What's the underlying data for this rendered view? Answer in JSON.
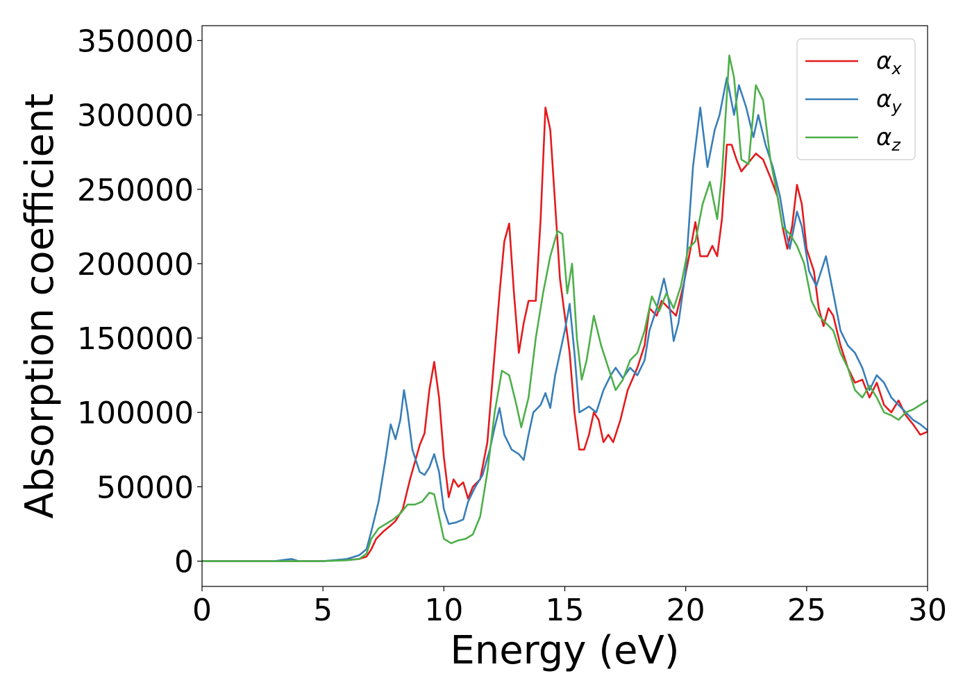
{
  "chart_data": {
    "type": "line",
    "xlabel": "Energy (eV)",
    "ylabel": "Absorption coefficient",
    "xlim": [
      0,
      30
    ],
    "ylim": [
      -17000,
      360000
    ],
    "xticks": [
      0,
      5,
      10,
      15,
      20,
      25,
      30
    ],
    "yticks": [
      0,
      50000,
      100000,
      150000,
      200000,
      250000,
      300000,
      350000
    ],
    "grid": false,
    "legend": "top-right",
    "series": [
      {
        "name": "α",
        "subscript": "x",
        "color": "#e41a1c",
        "points": [
          [
            0,
            0
          ],
          [
            1,
            0
          ],
          [
            2,
            0
          ],
          [
            3,
            0
          ],
          [
            4,
            0
          ],
          [
            5,
            0
          ],
          [
            5.5,
            500
          ],
          [
            6,
            800
          ],
          [
            6.5,
            1500
          ],
          [
            6.8,
            3000
          ],
          [
            7,
            8000
          ],
          [
            7.2,
            15000
          ],
          [
            7.5,
            20000
          ],
          [
            7.8,
            24000
          ],
          [
            8,
            27000
          ],
          [
            8.3,
            35000
          ],
          [
            8.6,
            55000
          ],
          [
            9,
            78000
          ],
          [
            9.2,
            86000
          ],
          [
            9.4,
            115000
          ],
          [
            9.6,
            134000
          ],
          [
            9.8,
            110000
          ],
          [
            10,
            70000
          ],
          [
            10.2,
            43000
          ],
          [
            10.4,
            55000
          ],
          [
            10.6,
            50000
          ],
          [
            10.8,
            53000
          ],
          [
            11,
            42000
          ],
          [
            11.2,
            50000
          ],
          [
            11.5,
            55000
          ],
          [
            11.8,
            80000
          ],
          [
            12,
            120000
          ],
          [
            12.3,
            180000
          ],
          [
            12.5,
            215000
          ],
          [
            12.7,
            227000
          ],
          [
            12.9,
            180000
          ],
          [
            13.1,
            140000
          ],
          [
            13.3,
            160000
          ],
          [
            13.5,
            175000
          ],
          [
            13.8,
            175000
          ],
          [
            14,
            230000
          ],
          [
            14.2,
            305000
          ],
          [
            14.4,
            290000
          ],
          [
            14.6,
            240000
          ],
          [
            14.8,
            190000
          ],
          [
            15,
            165000
          ],
          [
            15.2,
            140000
          ],
          [
            15.4,
            100000
          ],
          [
            15.6,
            75000
          ],
          [
            15.8,
            75000
          ],
          [
            16,
            85000
          ],
          [
            16.2,
            100000
          ],
          [
            16.4,
            95000
          ],
          [
            16.6,
            80000
          ],
          [
            16.8,
            85000
          ],
          [
            17,
            80000
          ],
          [
            17.3,
            95000
          ],
          [
            17.6,
            115000
          ],
          [
            18,
            130000
          ],
          [
            18.3,
            145000
          ],
          [
            18.5,
            170000
          ],
          [
            18.8,
            165000
          ],
          [
            19,
            175000
          ],
          [
            19.3,
            170000
          ],
          [
            19.6,
            165000
          ],
          [
            19.9,
            185000
          ],
          [
            20.2,
            210000
          ],
          [
            20.4,
            228000
          ],
          [
            20.6,
            205000
          ],
          [
            20.9,
            205000
          ],
          [
            21.1,
            212000
          ],
          [
            21.3,
            205000
          ],
          [
            21.5,
            230000
          ],
          [
            21.7,
            280000
          ],
          [
            21.9,
            280000
          ],
          [
            22.1,
            270000
          ],
          [
            22.3,
            262000
          ],
          [
            22.6,
            268000
          ],
          [
            22.9,
            274000
          ],
          [
            23.2,
            270000
          ],
          [
            23.5,
            258000
          ],
          [
            23.8,
            245000
          ],
          [
            24,
            225000
          ],
          [
            24.2,
            210000
          ],
          [
            24.4,
            225000
          ],
          [
            24.6,
            253000
          ],
          [
            24.8,
            240000
          ],
          [
            25,
            210000
          ],
          [
            25.3,
            195000
          ],
          [
            25.5,
            170000
          ],
          [
            25.7,
            158000
          ],
          [
            25.9,
            170000
          ],
          [
            26.1,
            165000
          ],
          [
            26.4,
            145000
          ],
          [
            26.7,
            130000
          ],
          [
            27,
            120000
          ],
          [
            27.3,
            122000
          ],
          [
            27.6,
            110000
          ],
          [
            27.9,
            120000
          ],
          [
            28.2,
            105000
          ],
          [
            28.5,
            100000
          ],
          [
            28.8,
            108000
          ],
          [
            29.1,
            98000
          ],
          [
            29.4,
            92000
          ],
          [
            29.7,
            85000
          ],
          [
            30,
            87000
          ]
        ]
      },
      {
        "name": "α",
        "subscript": "y",
        "color": "#377eb8",
        "points": [
          [
            0,
            0
          ],
          [
            1,
            0
          ],
          [
            2,
            0
          ],
          [
            3,
            0
          ],
          [
            3.7,
            1500
          ],
          [
            4,
            0
          ],
          [
            5,
            0
          ],
          [
            5.5,
            700
          ],
          [
            6,
            1500
          ],
          [
            6.5,
            4000
          ],
          [
            6.8,
            8000
          ],
          [
            7,
            20000
          ],
          [
            7.3,
            40000
          ],
          [
            7.6,
            70000
          ],
          [
            7.8,
            92000
          ],
          [
            8,
            82000
          ],
          [
            8.2,
            95000
          ],
          [
            8.35,
            115000
          ],
          [
            8.5,
            100000
          ],
          [
            8.7,
            75000
          ],
          [
            9,
            60000
          ],
          [
            9.2,
            58000
          ],
          [
            9.4,
            63000
          ],
          [
            9.6,
            72000
          ],
          [
            9.8,
            60000
          ],
          [
            10,
            35000
          ],
          [
            10.2,
            25000
          ],
          [
            10.5,
            26000
          ],
          [
            10.8,
            28000
          ],
          [
            11,
            40000
          ],
          [
            11.3,
            50000
          ],
          [
            11.6,
            58000
          ],
          [
            11.9,
            75000
          ],
          [
            12.1,
            90000
          ],
          [
            12.3,
            103000
          ],
          [
            12.5,
            85000
          ],
          [
            12.8,
            75000
          ],
          [
            13.1,
            72000
          ],
          [
            13.3,
            68000
          ],
          [
            13.5,
            85000
          ],
          [
            13.7,
            100000
          ],
          [
            14,
            105000
          ],
          [
            14.2,
            113000
          ],
          [
            14.4,
            103000
          ],
          [
            14.6,
            125000
          ],
          [
            14.8,
            140000
          ],
          [
            15,
            155000
          ],
          [
            15.2,
            173000
          ],
          [
            15.4,
            140000
          ],
          [
            15.6,
            100000
          ],
          [
            15.8,
            102000
          ],
          [
            16,
            104000
          ],
          [
            16.3,
            100000
          ],
          [
            16.6,
            115000
          ],
          [
            16.9,
            125000
          ],
          [
            17.1,
            130000
          ],
          [
            17.4,
            123000
          ],
          [
            17.7,
            130000
          ],
          [
            18,
            125000
          ],
          [
            18.3,
            135000
          ],
          [
            18.5,
            155000
          ],
          [
            18.8,
            170000
          ],
          [
            19.1,
            190000
          ],
          [
            19.3,
            175000
          ],
          [
            19.5,
            148000
          ],
          [
            19.7,
            160000
          ],
          [
            20,
            195000
          ],
          [
            20.3,
            265000
          ],
          [
            20.6,
            305000
          ],
          [
            20.9,
            265000
          ],
          [
            21.2,
            290000
          ],
          [
            21.4,
            300000
          ],
          [
            21.7,
            325000
          ],
          [
            22,
            300000
          ],
          [
            22.2,
            320000
          ],
          [
            22.5,
            305000
          ],
          [
            22.8,
            285000
          ],
          [
            23,
            300000
          ],
          [
            23.3,
            280000
          ],
          [
            23.6,
            265000
          ],
          [
            23.9,
            245000
          ],
          [
            24.1,
            225000
          ],
          [
            24.3,
            210000
          ],
          [
            24.6,
            235000
          ],
          [
            24.8,
            225000
          ],
          [
            25.1,
            195000
          ],
          [
            25.4,
            185000
          ],
          [
            25.8,
            205000
          ],
          [
            26.1,
            180000
          ],
          [
            26.4,
            155000
          ],
          [
            26.7,
            145000
          ],
          [
            27,
            140000
          ],
          [
            27.3,
            130000
          ],
          [
            27.6,
            115000
          ],
          [
            27.9,
            125000
          ],
          [
            28.2,
            120000
          ],
          [
            28.5,
            110000
          ],
          [
            28.8,
            105000
          ],
          [
            29.1,
            100000
          ],
          [
            29.4,
            95000
          ],
          [
            29.7,
            92000
          ],
          [
            30,
            88000
          ]
        ]
      },
      {
        "name": "α",
        "subscript": "z",
        "color": "#4daf4a",
        "points": [
          [
            0,
            0
          ],
          [
            1,
            0
          ],
          [
            2,
            0
          ],
          [
            3,
            0
          ],
          [
            4,
            0
          ],
          [
            5,
            0
          ],
          [
            5.5,
            300
          ],
          [
            6,
            600
          ],
          [
            6.5,
            1500
          ],
          [
            6.8,
            5000
          ],
          [
            7,
            15000
          ],
          [
            7.3,
            22000
          ],
          [
            7.6,
            25000
          ],
          [
            7.9,
            28000
          ],
          [
            8.2,
            32000
          ],
          [
            8.5,
            38000
          ],
          [
            8.8,
            38000
          ],
          [
            9.1,
            40000
          ],
          [
            9.4,
            46000
          ],
          [
            9.6,
            45000
          ],
          [
            9.8,
            30000
          ],
          [
            10,
            15000
          ],
          [
            10.3,
            12000
          ],
          [
            10.6,
            14000
          ],
          [
            10.9,
            15000
          ],
          [
            11.2,
            18000
          ],
          [
            11.5,
            30000
          ],
          [
            11.8,
            60000
          ],
          [
            12.1,
            100000
          ],
          [
            12.4,
            128000
          ],
          [
            12.7,
            125000
          ],
          [
            13,
            105000
          ],
          [
            13.2,
            90000
          ],
          [
            13.5,
            110000
          ],
          [
            13.8,
            150000
          ],
          [
            14.1,
            180000
          ],
          [
            14.4,
            205000
          ],
          [
            14.7,
            222000
          ],
          [
            14.9,
            220000
          ],
          [
            15.1,
            180000
          ],
          [
            15.3,
            200000
          ],
          [
            15.5,
            150000
          ],
          [
            15.7,
            122000
          ],
          [
            15.9,
            135000
          ],
          [
            16.2,
            165000
          ],
          [
            16.5,
            145000
          ],
          [
            16.8,
            130000
          ],
          [
            17.1,
            115000
          ],
          [
            17.4,
            122000
          ],
          [
            17.7,
            135000
          ],
          [
            18,
            140000
          ],
          [
            18.3,
            155000
          ],
          [
            18.6,
            178000
          ],
          [
            18.9,
            168000
          ],
          [
            19.2,
            180000
          ],
          [
            19.5,
            170000
          ],
          [
            19.8,
            185000
          ],
          [
            20.1,
            210000
          ],
          [
            20.4,
            215000
          ],
          [
            20.7,
            240000
          ],
          [
            21,
            255000
          ],
          [
            21.3,
            230000
          ],
          [
            21.5,
            260000
          ],
          [
            21.8,
            340000
          ],
          [
            22,
            325000
          ],
          [
            22.3,
            270000
          ],
          [
            22.6,
            267000
          ],
          [
            22.9,
            320000
          ],
          [
            23.2,
            310000
          ],
          [
            23.5,
            270000
          ],
          [
            23.8,
            245000
          ],
          [
            24,
            225000
          ],
          [
            24.3,
            220000
          ],
          [
            24.6,
            212000
          ],
          [
            24.9,
            200000
          ],
          [
            25.2,
            175000
          ],
          [
            25.5,
            165000
          ],
          [
            25.8,
            160000
          ],
          [
            26.1,
            155000
          ],
          [
            26.4,
            140000
          ],
          [
            26.7,
            130000
          ],
          [
            27,
            115000
          ],
          [
            27.3,
            110000
          ],
          [
            27.6,
            118000
          ],
          [
            27.9,
            110000
          ],
          [
            28.2,
            100000
          ],
          [
            28.5,
            98000
          ],
          [
            28.8,
            95000
          ],
          [
            29.1,
            100000
          ],
          [
            29.4,
            102000
          ],
          [
            29.7,
            105000
          ],
          [
            30,
            108000
          ]
        ]
      }
    ]
  }
}
